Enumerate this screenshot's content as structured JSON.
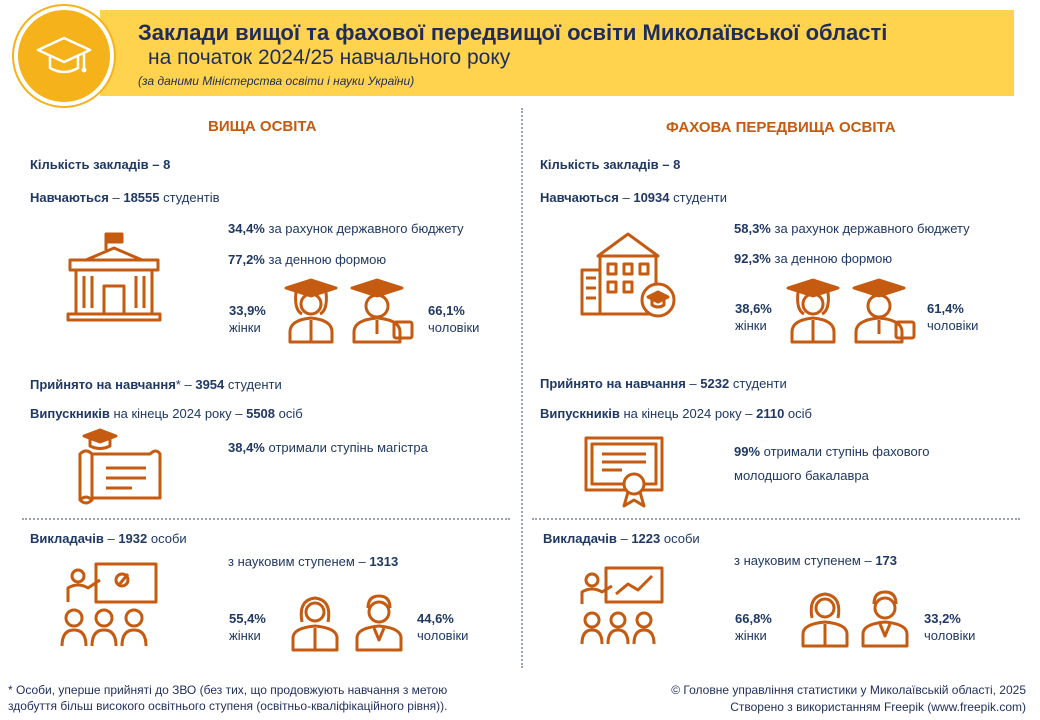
{
  "header": {
    "title": "Заклади вищої та фахової передвищої освіти Миколаївської області",
    "subtitle": "на початок 2024/25 навчального року",
    "source": "(за даними Міністерства освіти і науки України)",
    "logo_icon": "graduation-cap-icon"
  },
  "left": {
    "title": "ВИЩА ОСВІТА",
    "institutions_label": "Кількість закладів",
    "institutions_value": "– 8",
    "students_label": "Навчаються",
    "students_dash": "–",
    "students_value": "18555",
    "students_unit": "студентів",
    "budget_pct": "34,4%",
    "budget_text": "за рахунок державного бюджету",
    "daytime_pct": "77,2%",
    "daytime_text": "за денною формою",
    "women_pct": "33,9%",
    "women_label": "жінки",
    "men_pct": "66,1%",
    "men_label": "чоловіки",
    "admitted_label": "Прийнято на навчання",
    "admitted_star": "*",
    "admitted_dash": "–",
    "admitted_value": "3954",
    "admitted_unit": "студенти",
    "grads_label": "Випускників",
    "grads_text": "на кінець 2024 року –",
    "grads_value": "5508",
    "grads_unit": "осіб",
    "degree_pct": "38,4%",
    "degree_text": "отримали ступінь магістра",
    "teachers_label": "Викладачів",
    "teachers_dash": "–",
    "teachers_value": "1932",
    "teachers_unit": "особи",
    "sci_text": "з науковим ступенем –",
    "sci_value": "1313",
    "t_women_pct": "55,4%",
    "t_women_label": "жінки",
    "t_men_pct": "44,6%",
    "t_men_label": "чоловіки"
  },
  "right": {
    "title": "ФАХОВА ПЕРЕДВИЩА ОСВІТА",
    "institutions_label": "Кількість закладів",
    "institutions_value": "– 8",
    "students_label": "Навчаються",
    "students_dash": "–",
    "students_value": "10934",
    "students_unit": "студенти",
    "budget_pct": "58,3%",
    "budget_text": "за рахунок державного бюджету",
    "daytime_pct": "92,3%",
    "daytime_text": "за денною формою",
    "women_pct": "38,6%",
    "women_label": "жінки",
    "men_pct": "61,4%",
    "men_label": "чоловіки",
    "admitted_label": "Прийнято на навчання",
    "admitted_dash": "–",
    "admitted_value": "5232",
    "admitted_unit": "студенти",
    "grads_label": "Випускників",
    "grads_text": "на кінець 2024 року –",
    "grads_value": "2110",
    "grads_unit": "осіб",
    "degree_pct": "99%",
    "degree_text1": "отримали ступінь фахового",
    "degree_text2": "молодшого бакалавра",
    "teachers_label": "Викладачів",
    "teachers_dash": "–",
    "teachers_value": "1223",
    "teachers_unit": "особи",
    "sci_text": "з науковим ступенем –",
    "sci_value": "173",
    "t_women_pct": "66,8%",
    "t_women_label": "жінки",
    "t_men_pct": "33,2%",
    "t_men_label": "чоловіки"
  },
  "footer": {
    "footnote_line1": "* Особи, уперше прийняті до ЗВО (без тих, що продовжують навчання з метою",
    "footnote_line2": "здобуття більш високого освітнього ступеня (освітньо-кваліфікаційного рівня)).",
    "copyright": "© Головне управління статистики у Миколаївській області, 2025",
    "credit": "Створено з використанням Freepik (www.freepik.com)"
  },
  "colors": {
    "accent": "#c55a11",
    "header_bg": "#ffd34d",
    "logo": "#f5b21a",
    "text": "#1f3864"
  }
}
